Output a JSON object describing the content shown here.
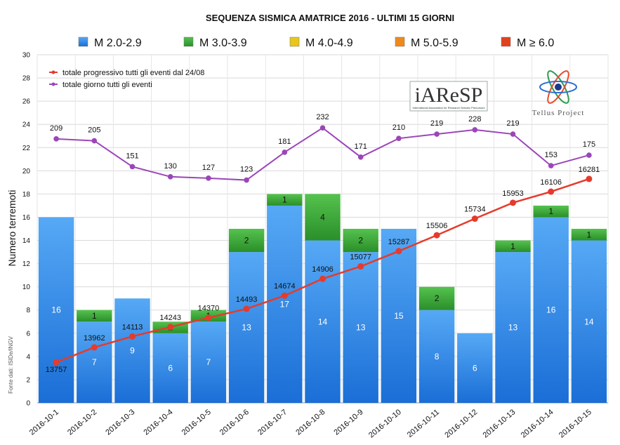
{
  "chart_data": {
    "type": "bar",
    "title": "SEQUENZA SISMICA AMATRICE 2016 - ULTIMI 15 GIORNI",
    "ylabel": "Numero terremoti",
    "xlabel": "",
    "ylim": [
      0,
      30
    ],
    "yticks": [
      0,
      2,
      4,
      6,
      8,
      10,
      12,
      14,
      16,
      18,
      20,
      22,
      24,
      26,
      28,
      30
    ],
    "grid": true,
    "stacked": true,
    "categories": [
      "2016-10-1",
      "2016-10-2",
      "2016-10-3",
      "2016-10-4",
      "2016-10-5",
      "2016-10-6",
      "2016-10-7",
      "2016-10-8",
      "2016-10-9",
      "2016-10-10",
      "2016-10-11",
      "2016-10-12",
      "2016-10-13",
      "2016-10-14",
      "2016-10-15"
    ],
    "series": [
      {
        "name": "M 2.0-2.9",
        "color": "#3a8fe6",
        "values": [
          16,
          7,
          9,
          6,
          7,
          13,
          17,
          14,
          13,
          15,
          8,
          6,
          13,
          16,
          14
        ]
      },
      {
        "name": "M 3.0-3.9",
        "color": "#3da33a",
        "values": [
          0,
          1,
          0,
          1,
          1,
          2,
          1,
          4,
          2,
          0,
          2,
          0,
          1,
          1,
          1
        ]
      },
      {
        "name": "M 4.0-4.9",
        "color": "#e8c61b",
        "values": [
          0,
          0,
          0,
          0,
          0,
          0,
          0,
          0,
          0,
          0,
          0,
          0,
          0,
          0,
          0
        ]
      },
      {
        "name": "M 5.0-5.9",
        "color": "#ee8a1c",
        "values": [
          0,
          0,
          0,
          0,
          0,
          0,
          0,
          0,
          0,
          0,
          0,
          0,
          0,
          0,
          0
        ]
      },
      {
        "name": "M ≥ 6.0",
        "color": "#e3401c",
        "values": [
          0,
          0,
          0,
          0,
          0,
          0,
          0,
          0,
          0,
          0,
          0,
          0,
          0,
          0,
          0
        ]
      }
    ],
    "lines": [
      {
        "name": "totale progressivo tutti gli eventi dal 24/08",
        "color": "#e53b2c",
        "values": [
          13757,
          13962,
          14113,
          14243,
          14370,
          14493,
          14674,
          14906,
          15077,
          15287,
          15506,
          15734,
          15953,
          16106,
          16281
        ]
      },
      {
        "name": "totale giorno tutti gli eventi",
        "color": "#9b46b8",
        "values": [
          209,
          205,
          151,
          130,
          127,
          123,
          181,
          232,
          171,
          210,
          219,
          228,
          219,
          153,
          175
        ]
      }
    ],
    "legend_position": "top",
    "line_legend_position": "top-left"
  },
  "source_note": "Fonte dati: ISIDe/INGV",
  "logos": {
    "iaresp": "iAReSP",
    "iaresp_sub": "International Association for Research Seismic Precursors",
    "tellus": "Tellus Project"
  }
}
